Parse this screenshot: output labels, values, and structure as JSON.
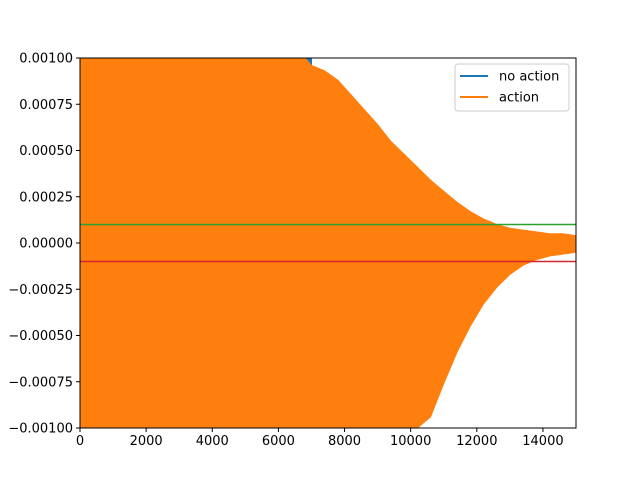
{
  "chart_data": {
    "type": "line",
    "title": "",
    "xlabel": "",
    "ylabel": "",
    "xlim": [
      0,
      15000
    ],
    "ylim": [
      -0.001,
      0.001
    ],
    "grid": false,
    "legend_position": "top-right",
    "x_ticks": [
      0,
      2000,
      4000,
      6000,
      8000,
      10000,
      12000,
      14000
    ],
    "x_tick_labels": [
      "0",
      "2000",
      "4000",
      "6000",
      "8000",
      "10000",
      "12000",
      "14000"
    ],
    "y_ticks": [
      0.001,
      0.00075,
      0.0005,
      0.00025,
      0,
      -0.00025,
      -0.0005,
      -0.00075,
      -0.001
    ],
    "y_tick_labels": [
      "0.00100",
      "0.00075",
      "0.00050",
      "0.00025",
      "0.00000",
      "−0.00025",
      "−0.00050",
      "−0.00075",
      "−0.00100"
    ],
    "series": [
      {
        "name": "no action",
        "color": "#1f77b4",
        "envelope": {
          "x": [
            0,
            5000,
            5060,
            5100,
            5200,
            5300,
            6300,
            6500,
            6600,
            6800,
            7000
          ],
          "upper": [
            0.001,
            0.001,
            0.001,
            0.001,
            0.001,
            0.001,
            0.001,
            0.00083,
            0.00085,
            0.001,
            0.001
          ],
          "lower": [
            -0.001,
            -0.001,
            -0.001,
            -0.00083,
            -0.00052,
            -0.001,
            -0.001,
            -0.001,
            -0.001,
            -0.001,
            -0.001
          ]
        }
      },
      {
        "name": "action",
        "color": "#ff7f0e",
        "envelope": {
          "x": [
            0,
            6800,
            7000,
            7400,
            7800,
            8200,
            8600,
            9000,
            9400,
            9800,
            10200,
            10600,
            11000,
            11400,
            11800,
            12200,
            12600,
            13000,
            13400,
            13800,
            14200,
            14600,
            15000
          ],
          "upper": [
            0.001,
            0.001,
            0.00096,
            0.00093,
            0.00088,
            0.0008,
            0.00072,
            0.00064,
            0.00055,
            0.00048,
            0.00041,
            0.00034,
            0.00028,
            0.00022,
            0.00017,
            0.00013,
            0.0001,
            8e-05,
            7e-05,
            6e-05,
            5e-05,
            5e-05,
            4e-05
          ],
          "lower": [
            -0.001,
            -0.001,
            -0.001,
            -0.001,
            -0.001,
            -0.001,
            -0.001,
            -0.001,
            -0.001,
            -0.001,
            -0.001,
            -0.00094,
            -0.00076,
            -0.00059,
            -0.00045,
            -0.00033,
            -0.00024,
            -0.00017,
            -0.00012,
            -9e-05,
            -7e-05,
            -6e-05,
            -5e-05
          ]
        }
      }
    ],
    "hlines": [
      {
        "y": 0.0001,
        "color": "#2ca02c"
      },
      {
        "y": -0.0001,
        "color": "#d62728"
      }
    ]
  }
}
